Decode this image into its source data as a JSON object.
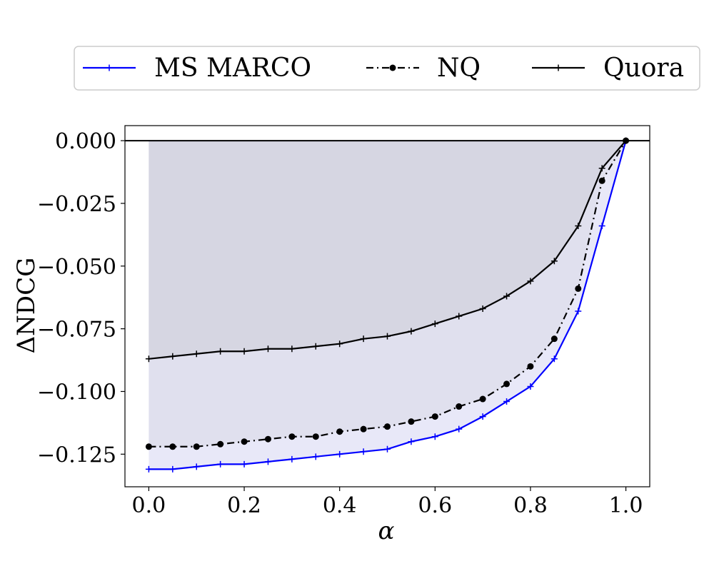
{
  "chart_data": {
    "type": "line",
    "xlabel": "α",
    "ylabel": "ΔNDCG",
    "xlim": [
      -0.05,
      1.05
    ],
    "ylim": [
      -0.138,
      0.006
    ],
    "x_ticks": [
      "0.0",
      "0.2",
      "0.4",
      "0.6",
      "0.8",
      "1.0"
    ],
    "x_tick_values": [
      0.0,
      0.2,
      0.4,
      0.6,
      0.8,
      1.0
    ],
    "y_ticks": [
      "0.000",
      "−0.025",
      "−0.050",
      "−0.075",
      "−0.100",
      "−0.125"
    ],
    "y_tick_values": [
      0.0,
      -0.025,
      -0.05,
      -0.075,
      -0.1,
      -0.125
    ],
    "grid": false,
    "legend_position": "top",
    "reference_line": 0.0,
    "x": [
      0.0,
      0.05,
      0.1,
      0.15,
      0.2,
      0.25,
      0.3,
      0.35,
      0.4,
      0.45,
      0.5,
      0.55,
      0.6,
      0.65,
      0.7,
      0.75,
      0.8,
      0.85,
      0.9,
      0.95,
      1.0
    ],
    "series": [
      {
        "name": "MS MARCO",
        "color": "#0000ff",
        "line_style": "solid",
        "marker": "plus",
        "fill_color": "#e8e8f8",
        "values": [
          -0.131,
          -0.131,
          -0.13,
          -0.129,
          -0.129,
          -0.128,
          -0.127,
          -0.126,
          -0.125,
          -0.124,
          -0.123,
          -0.12,
          -0.118,
          -0.115,
          -0.11,
          -0.104,
          -0.098,
          -0.087,
          -0.068,
          -0.034,
          0.0
        ]
      },
      {
        "name": "NQ",
        "color": "#000000",
        "line_style": "dashdot",
        "marker": "circle",
        "fill_color": "#e0e0ee",
        "values": [
          -0.122,
          -0.122,
          -0.122,
          -0.121,
          -0.12,
          -0.119,
          -0.118,
          -0.118,
          -0.116,
          -0.115,
          -0.114,
          -0.112,
          -0.11,
          -0.106,
          -0.103,
          -0.097,
          -0.09,
          -0.079,
          -0.059,
          -0.016,
          0.0
        ]
      },
      {
        "name": "Quora",
        "color": "#000000",
        "line_style": "solid",
        "marker": "plus",
        "fill_color": "#d6d6e2",
        "values": [
          -0.087,
          -0.086,
          -0.085,
          -0.084,
          -0.084,
          -0.083,
          -0.083,
          -0.082,
          -0.081,
          -0.079,
          -0.078,
          -0.076,
          -0.073,
          -0.07,
          -0.067,
          -0.062,
          -0.056,
          -0.048,
          -0.034,
          -0.011,
          0.0
        ]
      }
    ]
  }
}
